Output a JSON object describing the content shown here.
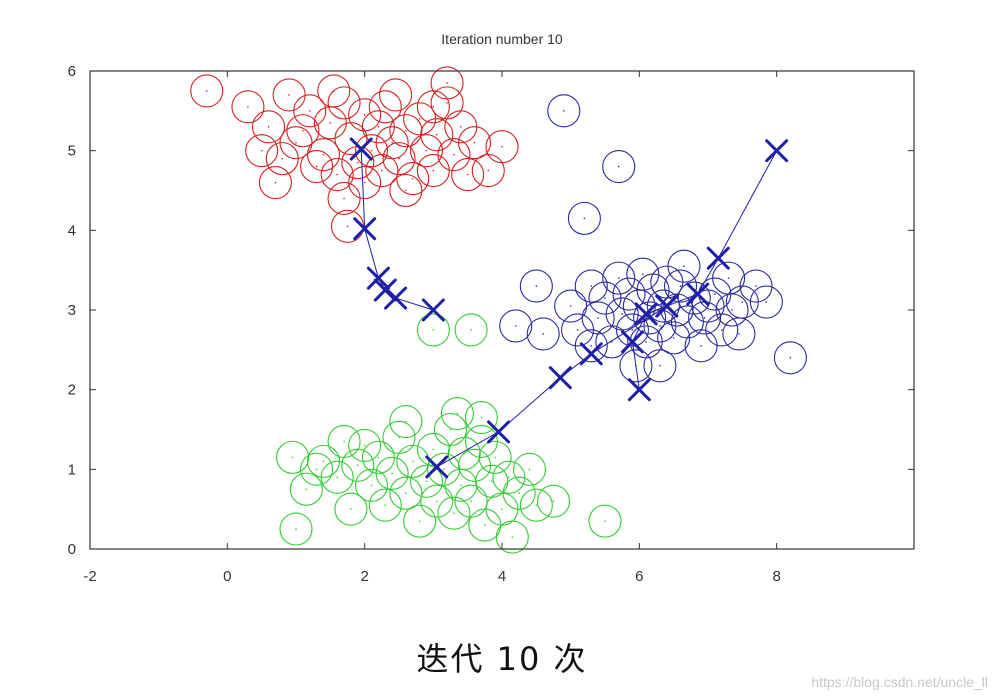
{
  "chart_data": {
    "type": "scatter",
    "title": "Iteration number 10",
    "xlabel": "",
    "ylabel": "",
    "xlim": [
      -2,
      10
    ],
    "ylim": [
      0,
      6
    ],
    "xticks": [
      -2,
      0,
      2,
      4,
      6,
      8
    ],
    "yticks": [
      0,
      1,
      2,
      3,
      4,
      5,
      6
    ],
    "grid": false,
    "clusters": [
      {
        "color": "#d42020",
        "marker": "circle",
        "points": [
          [
            -0.3,
            5.75
          ],
          [
            0.3,
            5.55
          ],
          [
            0.6,
            5.3
          ],
          [
            0.9,
            5.7
          ],
          [
            1.0,
            5.1
          ],
          [
            1.2,
            5.5
          ],
          [
            1.4,
            4.95
          ],
          [
            1.5,
            5.35
          ],
          [
            1.6,
            4.7
          ],
          [
            1.7,
            5.6
          ],
          [
            1.8,
            5.15
          ],
          [
            1.9,
            4.85
          ],
          [
            2.0,
            5.45
          ],
          [
            2.0,
            4.6
          ],
          [
            2.1,
            5.0
          ],
          [
            2.2,
            5.3
          ],
          [
            2.25,
            4.75
          ],
          [
            2.3,
            5.55
          ],
          [
            2.4,
            5.1
          ],
          [
            2.5,
            4.9
          ],
          [
            2.6,
            5.25
          ],
          [
            2.7,
            4.65
          ],
          [
            2.8,
            5.4
          ],
          [
            2.9,
            5.0
          ],
          [
            3.0,
            4.75
          ],
          [
            3.05,
            5.2
          ],
          [
            3.2,
            5.6
          ],
          [
            3.3,
            4.95
          ],
          [
            3.4,
            5.3
          ],
          [
            3.6,
            5.1
          ],
          [
            3.2,
            5.85
          ],
          [
            1.3,
            4.8
          ],
          [
            0.8,
            4.9
          ],
          [
            0.5,
            5.0
          ],
          [
            1.7,
            4.4
          ],
          [
            2.6,
            4.5
          ],
          [
            3.5,
            4.7
          ],
          [
            4.0,
            5.05
          ],
          [
            3.8,
            4.75
          ],
          [
            1.75,
            4.05
          ],
          [
            1.1,
            5.25
          ],
          [
            2.45,
            5.7
          ],
          [
            1.55,
            5.75
          ],
          [
            0.7,
            4.6
          ],
          [
            3.0,
            5.55
          ]
        ]
      },
      {
        "color": "#2a2aa0",
        "marker": "circle",
        "points": [
          [
            4.9,
            5.5
          ],
          [
            5.7,
            4.8
          ],
          [
            5.2,
            4.15
          ],
          [
            8.2,
            2.4
          ],
          [
            7.3,
            3.4
          ],
          [
            7.0,
            3.05
          ],
          [
            7.5,
            3.1
          ],
          [
            4.2,
            2.8
          ],
          [
            4.5,
            3.3
          ],
          [
            4.6,
            2.7
          ],
          [
            5.0,
            3.05
          ],
          [
            5.1,
            2.75
          ],
          [
            5.3,
            3.3
          ],
          [
            5.4,
            2.9
          ],
          [
            5.5,
            3.15
          ],
          [
            5.6,
            2.6
          ],
          [
            5.7,
            3.4
          ],
          [
            5.75,
            2.95
          ],
          [
            5.85,
            3.2
          ],
          [
            5.9,
            2.75
          ],
          [
            6.0,
            3.05
          ],
          [
            6.05,
            3.45
          ],
          [
            6.1,
            2.6
          ],
          [
            6.15,
            2.9
          ],
          [
            6.2,
            3.25
          ],
          [
            6.3,
            2.8
          ],
          [
            6.35,
            3.05
          ],
          [
            6.4,
            3.35
          ],
          [
            6.5,
            2.65
          ],
          [
            6.55,
            3.0
          ],
          [
            6.6,
            3.3
          ],
          [
            6.7,
            2.85
          ],
          [
            6.8,
            3.15
          ],
          [
            6.9,
            2.55
          ],
          [
            6.95,
            2.9
          ],
          [
            7.1,
            3.2
          ],
          [
            7.2,
            2.75
          ],
          [
            7.35,
            3.0
          ],
          [
            7.45,
            2.7
          ],
          [
            7.7,
            3.3
          ],
          [
            7.85,
            3.1
          ],
          [
            6.3,
            2.3
          ],
          [
            5.95,
            2.3
          ],
          [
            6.65,
            3.55
          ],
          [
            5.3,
            2.55
          ]
        ]
      },
      {
        "color": "#33cc33",
        "marker": "circle",
        "points": [
          [
            0.95,
            1.15
          ],
          [
            1.0,
            0.25
          ],
          [
            1.15,
            0.75
          ],
          [
            1.4,
            1.1
          ],
          [
            1.6,
            0.9
          ],
          [
            1.7,
            1.35
          ],
          [
            1.8,
            0.5
          ],
          [
            1.9,
            1.05
          ],
          [
            2.0,
            1.3
          ],
          [
            2.1,
            0.8
          ],
          [
            2.2,
            1.15
          ],
          [
            2.3,
            0.55
          ],
          [
            2.4,
            0.95
          ],
          [
            2.5,
            1.4
          ],
          [
            2.6,
            0.7
          ],
          [
            2.7,
            1.1
          ],
          [
            2.8,
            0.35
          ],
          [
            2.9,
            0.85
          ],
          [
            3.0,
            1.25
          ],
          [
            3.05,
            0.6
          ],
          [
            3.15,
            1.0
          ],
          [
            3.25,
            1.5
          ],
          [
            3.3,
            0.45
          ],
          [
            3.4,
            0.8
          ],
          [
            3.45,
            1.2
          ],
          [
            3.55,
            0.6
          ],
          [
            3.6,
            1.05
          ],
          [
            3.7,
            1.35
          ],
          [
            3.75,
            0.3
          ],
          [
            3.85,
            0.85
          ],
          [
            3.9,
            1.15
          ],
          [
            4.0,
            0.5
          ],
          [
            4.1,
            0.9
          ],
          [
            4.15,
            0.15
          ],
          [
            4.25,
            0.7
          ],
          [
            4.4,
            1.0
          ],
          [
            4.5,
            0.55
          ],
          [
            4.75,
            0.6
          ],
          [
            5.5,
            0.35
          ],
          [
            3.35,
            1.7
          ],
          [
            3.7,
            1.65
          ],
          [
            3.0,
            2.75
          ],
          [
            3.55,
            2.75
          ],
          [
            2.6,
            1.6
          ],
          [
            1.3,
            1.0
          ]
        ]
      }
    ],
    "centroid_trajectories": [
      {
        "color": "#1f1fa8",
        "marker": "x",
        "points": [
          [
            3.0,
            3.0
          ],
          [
            2.45,
            3.15
          ],
          [
            2.3,
            3.25
          ],
          [
            2.2,
            3.4
          ],
          [
            2.0,
            4.02
          ],
          [
            1.95,
            5.02
          ]
        ]
      },
      {
        "color": "#1f1fa8",
        "marker": "x",
        "points": [
          [
            6.0,
            2.0
          ],
          [
            5.9,
            2.6
          ],
          [
            6.1,
            2.95
          ],
          [
            6.4,
            3.05
          ]
        ]
      },
      {
        "color": "#1f1fa8",
        "marker": "x",
        "points": [
          [
            8.0,
            5.0
          ],
          [
            7.15,
            3.65
          ],
          [
            6.85,
            3.2
          ],
          [
            6.4,
            3.05
          ],
          [
            5.3,
            2.45
          ],
          [
            4.85,
            2.15
          ],
          [
            3.95,
            1.47
          ],
          [
            3.05,
            1.03
          ]
        ]
      }
    ]
  },
  "caption": "迭代 10 次",
  "watermark": "https://blog.csdn.net/uncle_ll"
}
